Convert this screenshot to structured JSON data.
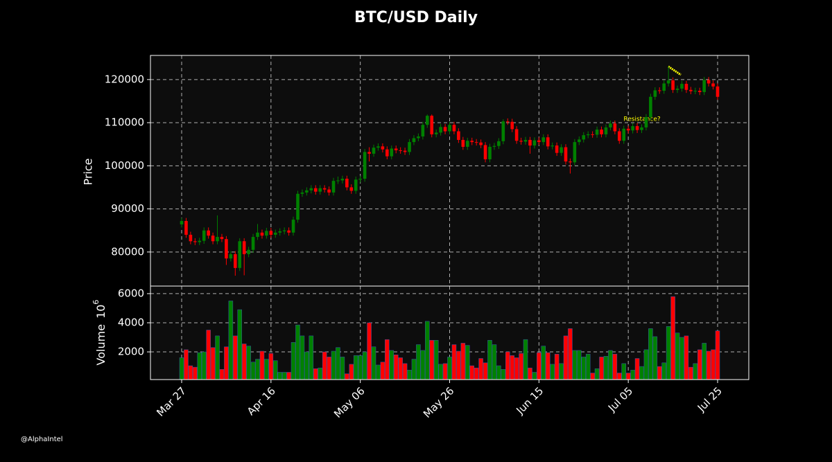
{
  "chart_data": {
    "type": "candlestick",
    "title": "BTC/USD Daily",
    "y_label": "Price",
    "volume_label": "Volume",
    "volume_scale_base": "10",
    "volume_scale_exponent": "6",
    "annotation": "Resistance?",
    "watermark": "@AlphaIntel",
    "up_color": "#008000",
    "down_color": "#ff0000",
    "annotation_color": "#ffff00",
    "grid": true,
    "ylim": [
      72100,
      125600
    ],
    "yticks": [
      80000,
      90000,
      100000,
      110000,
      120000
    ],
    "volume_ylim": [
      100,
      6520
    ],
    "volume_yticks": [
      2000,
      4000,
      6000
    ],
    "categories": [
      "Mar 27",
      null,
      null,
      null,
      null,
      null,
      null,
      null,
      null,
      null,
      null,
      null,
      null,
      null,
      null,
      null,
      null,
      null,
      null,
      null,
      "Apr 16",
      null,
      null,
      null,
      null,
      null,
      null,
      null,
      null,
      null,
      null,
      null,
      null,
      null,
      null,
      null,
      null,
      null,
      null,
      null,
      "May 06",
      null,
      null,
      null,
      null,
      null,
      null,
      null,
      null,
      null,
      null,
      null,
      null,
      null,
      null,
      null,
      null,
      null,
      null,
      null,
      "May 26",
      null,
      null,
      null,
      null,
      null,
      null,
      null,
      null,
      null,
      null,
      null,
      null,
      null,
      null,
      null,
      null,
      null,
      null,
      null,
      "Jun 15",
      null,
      null,
      null,
      null,
      null,
      null,
      null,
      null,
      null,
      null,
      null,
      null,
      null,
      null,
      null,
      null,
      null,
      null,
      null,
      "Jul 05",
      null,
      null,
      null,
      null,
      null,
      null,
      null,
      null,
      null,
      null,
      null,
      null,
      null,
      null,
      null,
      null,
      null,
      null,
      null,
      "Jul 25"
    ],
    "open": [
      86400,
      87200,
      84000,
      82500,
      82300,
      82600,
      85000,
      83800,
      82500,
      83500,
      83000,
      78500,
      79500,
      76300,
      82500,
      79500,
      80500,
      83500,
      84500,
      83800,
      84900,
      84000,
      84500,
      84800,
      85000,
      84500,
      87500,
      93500,
      93800,
      94300,
      94800,
      94000,
      94800,
      94500,
      93800,
      96500,
      96600,
      97000,
      95000,
      94200,
      96800,
      97000,
      103200,
      102800,
      104200,
      104500,
      103800,
      102200,
      104000,
      103600,
      103500,
      103200,
      105500,
      106400,
      106800,
      109500,
      111600,
      107300,
      107700,
      109000,
      108000,
      109500,
      108000,
      106000,
      104400,
      105800,
      105500,
      105400,
      104800,
      101500,
      104400,
      104600,
      105700,
      110300,
      110200,
      108500,
      105800,
      105600,
      106000,
      104700,
      105900,
      105500,
      106600,
      104500,
      104700,
      103000,
      104300,
      101000,
      100800,
      105500,
      106100,
      107100,
      107300,
      107200,
      108400,
      107300,
      108900,
      109800,
      108000,
      105800,
      108600,
      108200,
      109200,
      108300,
      108900,
      111300,
      116000,
      117500,
      117400,
      119100,
      119800,
      117600,
      117900,
      119000,
      117600,
      117300,
      117400,
      117100,
      119900,
      119100,
      118400
    ],
    "high": [
      87900,
      87900,
      84700,
      83200,
      83300,
      85700,
      85700,
      84500,
      88500,
      84200,
      83700,
      80200,
      80200,
      83200,
      83200,
      81200,
      84200,
      86500,
      85200,
      85600,
      85600,
      85200,
      85500,
      85700,
      85700,
      88200,
      94200,
      94500,
      95000,
      95500,
      95500,
      95500,
      95500,
      95200,
      97200,
      97500,
      97700,
      97700,
      95700,
      97500,
      97700,
      103900,
      104300,
      104900,
      105200,
      105200,
      104500,
      104700,
      104700,
      104300,
      104200,
      106200,
      107100,
      107500,
      110200,
      111900,
      111900,
      108400,
      109700,
      109700,
      110200,
      110200,
      108700,
      106700,
      106500,
      106500,
      106200,
      106100,
      105500,
      105100,
      105300,
      106400,
      110800,
      111000,
      110900,
      109200,
      106500,
      106700,
      106700,
      106600,
      106600,
      107300,
      107300,
      105400,
      105400,
      105000,
      105000,
      101700,
      106200,
      106800,
      107800,
      108000,
      108000,
      109100,
      109100,
      109600,
      110500,
      110500,
      108700,
      109300,
      109300,
      109900,
      109900,
      109600,
      112000,
      116700,
      118200,
      118200,
      119800,
      123000,
      120500,
      118600,
      119700,
      119700,
      118300,
      118100,
      118100,
      120600,
      120600,
      119800,
      119100
    ],
    "low": [
      85700,
      83300,
      81800,
      81600,
      81600,
      81900,
      83100,
      81800,
      81800,
      82300,
      77000,
      77800,
      74500,
      75600,
      74600,
      78800,
      79800,
      82800,
      83100,
      83100,
      83300,
      83300,
      83800,
      84100,
      83800,
      83800,
      86800,
      92800,
      93100,
      93600,
      93300,
      93300,
      93800,
      93100,
      93100,
      95800,
      95900,
      94300,
      93500,
      93500,
      96100,
      96300,
      101000,
      102100,
      103500,
      103100,
      101500,
      101500,
      102900,
      102800,
      102500,
      102500,
      104800,
      105700,
      106100,
      108800,
      106600,
      106600,
      107000,
      107300,
      107300,
      107300,
      105300,
      103700,
      103700,
      104800,
      104700,
      104100,
      100800,
      100800,
      103700,
      103900,
      105000,
      109500,
      107800,
      105100,
      104900,
      104900,
      102800,
      104000,
      104800,
      104800,
      103800,
      103800,
      102300,
      102300,
      100300,
      98200,
      100100,
      104800,
      105400,
      106400,
      106500,
      106500,
      106600,
      106600,
      108200,
      107300,
      105100,
      105100,
      107500,
      107500,
      107600,
      107600,
      108200,
      110600,
      115300,
      116700,
      116700,
      118400,
      116900,
      116900,
      117200,
      116900,
      116600,
      116600,
      116400,
      116400,
      118400,
      117700,
      115300
    ],
    "close": [
      87200,
      84000,
      82500,
      82300,
      82600,
      85000,
      83800,
      82500,
      83500,
      83000,
      78500,
      79500,
      76300,
      82500,
      79500,
      80500,
      83500,
      84500,
      83800,
      84900,
      84000,
      84500,
      84800,
      85000,
      84500,
      87500,
      93500,
      93800,
      94300,
      94800,
      94000,
      94800,
      94500,
      93800,
      96500,
      96600,
      97000,
      95000,
      94200,
      96800,
      97000,
      103200,
      102800,
      104200,
      104500,
      103800,
      102200,
      104000,
      103600,
      103500,
      103200,
      105500,
      106400,
      106800,
      109500,
      111600,
      107300,
      107700,
      109000,
      108000,
      109500,
      108000,
      106000,
      104400,
      105800,
      105500,
      105400,
      104800,
      101500,
      104400,
      104600,
      105700,
      110300,
      110200,
      108500,
      105800,
      105600,
      106000,
      104700,
      105900,
      105500,
      106600,
      104500,
      104700,
      103000,
      104300,
      101000,
      100800,
      105500,
      106100,
      107100,
      107300,
      107200,
      108400,
      107300,
      108900,
      109800,
      108000,
      105800,
      108600,
      108200,
      109200,
      108300,
      108900,
      111300,
      116000,
      117500,
      117400,
      119100,
      119800,
      117600,
      117900,
      119000,
      117600,
      117300,
      117400,
      117100,
      119900,
      119100,
      118400,
      116000
    ],
    "volume": [
      1600,
      2150,
      1050,
      950,
      1950,
      2000,
      3500,
      2300,
      3100,
      800,
      2350,
      5500,
      3100,
      4900,
      2550,
      2400,
      1300,
      1500,
      2050,
      1500,
      1900,
      1400,
      600,
      600,
      600,
      2650,
      3850,
      3100,
      2000,
      3100,
      850,
      900,
      2000,
      1650,
      2050,
      2300,
      1650,
      500,
      1150,
      1750,
      1750,
      2000,
      4000,
      2350,
      1100,
      1300,
      2850,
      2100,
      1800,
      1600,
      1200,
      750,
      1500,
      2500,
      2100,
      4100,
      2800,
      2800,
      1150,
      1200,
      1650,
      2500,
      2050,
      2600,
      2450,
      1050,
      900,
      1550,
      1250,
      2800,
      2500,
      1050,
      800,
      2000,
      1750,
      1600,
      1900,
      2850,
      900,
      600,
      1950,
      2400,
      1950,
      1150,
      1850,
      1200,
      3100,
      3600,
      2100,
      2100,
      1650,
      1850,
      550,
      850,
      1650,
      1700,
      2100,
      1850,
      550,
      1200,
      550,
      750,
      1550,
      1000,
      2150,
      3600,
      3050,
      1000,
      1250,
      3750,
      5800,
      3300,
      3000,
      3100,
      950,
      1200,
      2150,
      2600,
      2050,
      2150,
      3450
    ]
  }
}
